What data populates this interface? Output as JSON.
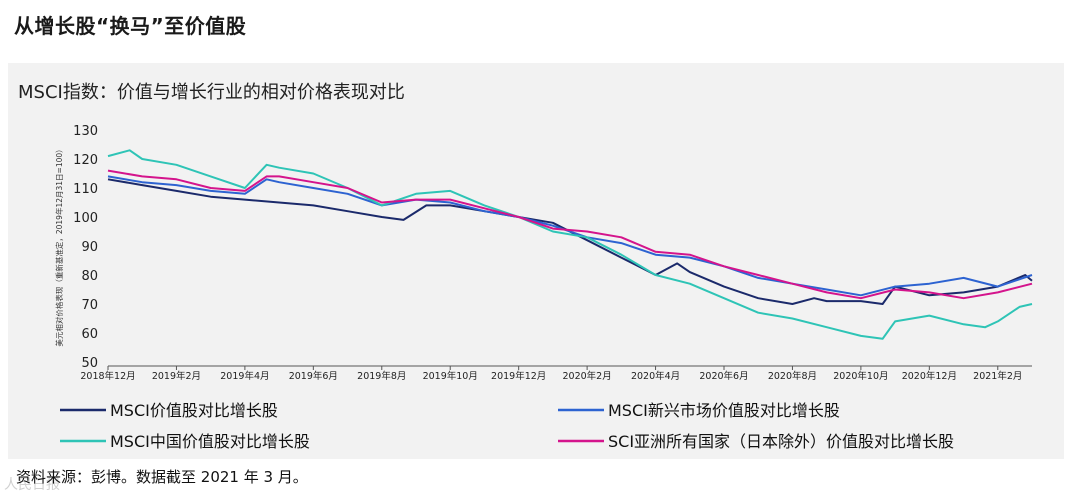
{
  "page": {
    "title": "从增长股“换马”至价值股",
    "source": "资料来源：彭博。数据截至 2021 年 3 月。",
    "watermark": "人民日报"
  },
  "chart_data": {
    "type": "line",
    "title": "MSCI指数：价值与增长行业的相对价格表现对比",
    "ylabel": "美元相对价格表现（重新基准定，2019年12月31日=100）",
    "xlabel": "",
    "ylim": [
      50,
      130
    ],
    "yticks": [
      50,
      60,
      70,
      80,
      90,
      100,
      110,
      120,
      130
    ],
    "xlim": [
      "2018-12",
      "2021-03"
    ],
    "xticks": [
      {
        "x": "2018-12",
        "label": "2018年12月"
      },
      {
        "x": "2019-02",
        "label": "2019年2月"
      },
      {
        "x": "2019-04",
        "label": "2019年4月"
      },
      {
        "x": "2019-06",
        "label": "2019年6月"
      },
      {
        "x": "2019-08",
        "label": "2019年8月"
      },
      {
        "x": "2019-10",
        "label": "2019年10月"
      },
      {
        "x": "2019-12",
        "label": "2019年12月"
      },
      {
        "x": "2020-02",
        "label": "2020年2月"
      },
      {
        "x": "2020-04",
        "label": "2020年4月"
      },
      {
        "x": "2020-06",
        "label": "2020年6月"
      },
      {
        "x": "2020-08",
        "label": "2020年8月"
      },
      {
        "x": "2020-10",
        "label": "2020年10月"
      },
      {
        "x": "2020-12",
        "label": "2020年12月"
      },
      {
        "x": "2021-02",
        "label": "2021年2月"
      }
    ],
    "grid": false,
    "legend_position": "bottom",
    "series": [
      {
        "name": "MSCI价值股对比增长股",
        "color": "#1b2a6b",
        "points": [
          [
            "2018-12-01",
            113
          ],
          [
            "2019-01-01",
            111
          ],
          [
            "2019-02-01",
            109
          ],
          [
            "2019-03-01",
            107
          ],
          [
            "2019-04-01",
            106
          ],
          [
            "2019-05-01",
            105
          ],
          [
            "2019-06-01",
            104
          ],
          [
            "2019-07-01",
            102
          ],
          [
            "2019-08-01",
            100
          ],
          [
            "2019-08-20",
            99
          ],
          [
            "2019-09-10",
            104
          ],
          [
            "2019-10-01",
            104
          ],
          [
            "2019-11-01",
            102
          ],
          [
            "2019-12-01",
            100
          ],
          [
            "2020-01-01",
            98
          ],
          [
            "2020-02-01",
            92
          ],
          [
            "2020-03-01",
            86
          ],
          [
            "2020-04-01",
            80
          ],
          [
            "2020-04-20",
            84
          ],
          [
            "2020-05-01",
            81
          ],
          [
            "2020-06-01",
            76
          ],
          [
            "2020-07-01",
            72
          ],
          [
            "2020-08-01",
            70
          ],
          [
            "2020-08-20",
            72
          ],
          [
            "2020-09-01",
            71
          ],
          [
            "2020-10-01",
            71
          ],
          [
            "2020-10-20",
            70
          ],
          [
            "2020-11-01",
            76
          ],
          [
            "2020-12-01",
            73
          ],
          [
            "2021-01-01",
            74
          ],
          [
            "2021-02-01",
            76
          ],
          [
            "2021-02-25",
            80
          ],
          [
            "2021-03-01",
            78
          ]
        ]
      },
      {
        "name": "MSCI新兴市场价值股对比增长股",
        "color": "#2d63d1",
        "points": [
          [
            "2018-12-01",
            114
          ],
          [
            "2019-01-01",
            112
          ],
          [
            "2019-02-01",
            111
          ],
          [
            "2019-03-01",
            109
          ],
          [
            "2019-04-01",
            108
          ],
          [
            "2019-04-20",
            113
          ],
          [
            "2019-05-01",
            112
          ],
          [
            "2019-06-01",
            110
          ],
          [
            "2019-07-01",
            108
          ],
          [
            "2019-08-01",
            104
          ],
          [
            "2019-09-01",
            106
          ],
          [
            "2019-10-01",
            105
          ],
          [
            "2019-11-01",
            102
          ],
          [
            "2019-12-01",
            100
          ],
          [
            "2020-01-01",
            97
          ],
          [
            "2020-02-01",
            93
          ],
          [
            "2020-03-01",
            91
          ],
          [
            "2020-04-01",
            87
          ],
          [
            "2020-05-01",
            86
          ],
          [
            "2020-06-01",
            83
          ],
          [
            "2020-07-01",
            79
          ],
          [
            "2020-08-01",
            77
          ],
          [
            "2020-09-01",
            75
          ],
          [
            "2020-10-01",
            73
          ],
          [
            "2020-11-01",
            76
          ],
          [
            "2020-12-01",
            77
          ],
          [
            "2021-01-01",
            79
          ],
          [
            "2021-02-01",
            76
          ],
          [
            "2021-03-01",
            80
          ]
        ]
      },
      {
        "name": "MSCI中国价值股对比增长股",
        "color": "#2ec4b6",
        "points": [
          [
            "2018-12-01",
            121
          ],
          [
            "2018-12-20",
            123
          ],
          [
            "2019-01-01",
            120
          ],
          [
            "2019-02-01",
            118
          ],
          [
            "2019-03-01",
            114
          ],
          [
            "2019-04-01",
            110
          ],
          [
            "2019-04-20",
            118
          ],
          [
            "2019-05-01",
            117
          ],
          [
            "2019-06-01",
            115
          ],
          [
            "2019-07-01",
            110
          ],
          [
            "2019-08-01",
            104
          ],
          [
            "2019-09-01",
            108
          ],
          [
            "2019-10-01",
            109
          ],
          [
            "2019-11-01",
            104
          ],
          [
            "2019-12-01",
            100
          ],
          [
            "2020-01-01",
            95
          ],
          [
            "2020-02-01",
            93
          ],
          [
            "2020-03-01",
            87
          ],
          [
            "2020-04-01",
            80
          ],
          [
            "2020-05-01",
            77
          ],
          [
            "2020-06-01",
            72
          ],
          [
            "2020-07-01",
            67
          ],
          [
            "2020-08-01",
            65
          ],
          [
            "2020-09-01",
            62
          ],
          [
            "2020-10-01",
            59
          ],
          [
            "2020-10-20",
            58
          ],
          [
            "2020-11-01",
            64
          ],
          [
            "2020-12-01",
            66
          ],
          [
            "2021-01-01",
            63
          ],
          [
            "2021-01-20",
            62
          ],
          [
            "2021-02-01",
            64
          ],
          [
            "2021-02-20",
            69
          ],
          [
            "2021-03-01",
            70
          ]
        ]
      },
      {
        "name": "SCI亚洲所有国家（日本除外）价值股对比增长股",
        "color": "#d4148c",
        "points": [
          [
            "2018-12-01",
            116
          ],
          [
            "2019-01-01",
            114
          ],
          [
            "2019-02-01",
            113
          ],
          [
            "2019-03-01",
            110
          ],
          [
            "2019-04-01",
            109
          ],
          [
            "2019-04-20",
            114
          ],
          [
            "2019-05-01",
            114
          ],
          [
            "2019-06-01",
            112
          ],
          [
            "2019-07-01",
            110
          ],
          [
            "2019-08-01",
            105
          ],
          [
            "2019-09-01",
            106
          ],
          [
            "2019-10-01",
            106
          ],
          [
            "2019-11-01",
            103
          ],
          [
            "2019-12-01",
            100
          ],
          [
            "2020-01-01",
            96
          ],
          [
            "2020-02-01",
            95
          ],
          [
            "2020-03-01",
            93
          ],
          [
            "2020-04-01",
            88
          ],
          [
            "2020-05-01",
            87
          ],
          [
            "2020-06-01",
            83
          ],
          [
            "2020-07-01",
            80
          ],
          [
            "2020-08-01",
            77
          ],
          [
            "2020-09-01",
            74
          ],
          [
            "2020-10-01",
            72
          ],
          [
            "2020-11-01",
            75
          ],
          [
            "2020-12-01",
            74
          ],
          [
            "2021-01-01",
            72
          ],
          [
            "2021-02-01",
            74
          ],
          [
            "2021-03-01",
            77
          ]
        ]
      }
    ]
  }
}
